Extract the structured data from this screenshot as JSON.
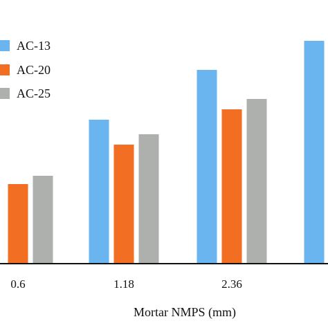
{
  "chart_data": {
    "type": "bar",
    "xlabel": "Mortar NMPS (mm)",
    "ylabel": "",
    "categories": [
      "0.6",
      "1.18",
      "2.36",
      ""
    ],
    "series": [
      {
        "name": "AC-13",
        "color": "#6ab4f0",
        "values": [
          null,
          34.5,
          46.5,
          53.5
        ]
      },
      {
        "name": "AC-20",
        "color": "#f26e22",
        "values": [
          19.0,
          28.5,
          37.0,
          null
        ]
      },
      {
        "name": "AC-25",
        "color": "#aeb0ae",
        "values": [
          21.0,
          31.0,
          39.5,
          null
        ]
      }
    ],
    "ylim": [
      0,
      60
    ],
    "grid": false,
    "legend": "top-left"
  }
}
